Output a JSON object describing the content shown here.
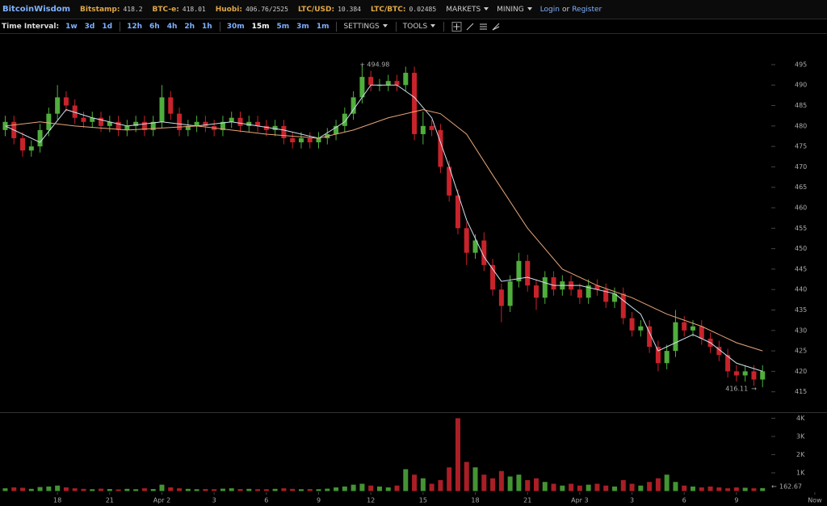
{
  "header": {
    "brand": "BitcoinWisdom",
    "tickers": [
      {
        "label": "Bitstamp:",
        "value": "418.2"
      },
      {
        "label": "BTC-e:",
        "value": "418.01"
      },
      {
        "label": "Huobi:",
        "value": "406.76/2525"
      },
      {
        "label": "LTC/USD:",
        "value": "10.384"
      },
      {
        "label": "LTC/BTC:",
        "value": "0.02485"
      }
    ],
    "markets": "MARKETS",
    "mining": "MINING",
    "login": "Login",
    "or": "or",
    "register": "Register"
  },
  "toolbar": {
    "label": "Time Interval:",
    "intervals": [
      "1w",
      "3d",
      "1d",
      "12h",
      "6h",
      "4h",
      "2h",
      "1h",
      "30m",
      "15m",
      "5m",
      "3m",
      "1m"
    ],
    "settings": "SETTINGS",
    "tools": "TOOLS"
  },
  "chart_data": {
    "type": "candlestick",
    "x": [
      15,
      15.5,
      16,
      16.5,
      17,
      17.5,
      18,
      18.5,
      19,
      19.5,
      20,
      20.5,
      21,
      21.5,
      22,
      22.5,
      23,
      23.5,
      24,
      24.5,
      25,
      25.5,
      26,
      26.5,
      27,
      27.5,
      28,
      28.5,
      29,
      29.5,
      30,
      30.5,
      31,
      31.5,
      32,
      32.5,
      33,
      33.5,
      34,
      34.5,
      35,
      35.5,
      36,
      36.5,
      37,
      37.5,
      38,
      38.5,
      39,
      39.5,
      40,
      40.5,
      41,
      41.5,
      42,
      42.5,
      43,
      43.5,
      44,
      44.5,
      45,
      45.5,
      46,
      46.5,
      47,
      47.5,
      48,
      48.5,
      49,
      49.5,
      50,
      50.5,
      51,
      51.5,
      52,
      52.5,
      53,
      53.5,
      54,
      54.5,
      55,
      55.5,
      56,
      56.5,
      57,
      57.5,
      58,
      58.5
    ],
    "open": [
      479,
      481,
      477,
      474,
      475,
      479,
      483,
      487,
      485,
      482,
      481,
      482,
      480,
      481,
      479,
      480,
      481,
      479,
      481,
      487,
      483,
      479,
      480,
      481,
      480,
      479,
      481,
      482,
      480,
      481,
      480,
      479,
      480,
      477,
      476,
      477,
      476,
      477,
      478,
      480,
      483,
      487,
      492,
      490,
      490,
      491,
      490,
      493,
      478,
      480,
      479,
      470,
      463,
      455,
      449,
      452,
      446,
      440,
      436,
      442,
      447,
      441,
      438,
      443,
      440,
      442,
      440,
      438,
      441,
      440,
      437,
      439,
      433,
      430,
      431,
      426,
      422,
      425,
      432,
      430,
      431,
      428,
      426,
      424,
      420,
      419,
      420,
      418
    ],
    "high": [
      482.5,
      482.5,
      478.5,
      476.5,
      480.5,
      484.5,
      490,
      488.5,
      486.5,
      483.5,
      483.5,
      483.5,
      482.5,
      482.5,
      481.5,
      482.5,
      482.5,
      482.5,
      490,
      488.5,
      484.5,
      481.5,
      482.5,
      482.5,
      481.5,
      482.5,
      483.5,
      483.5,
      482.5,
      482.5,
      481.5,
      481.5,
      481.5,
      478.5,
      478.5,
      478.5,
      478.5,
      479.5,
      481.5,
      484.5,
      488.5,
      494.98,
      493.5,
      491.5,
      492.5,
      492.5,
      494.5,
      494.5,
      483.5,
      481.5,
      480.5,
      471.5,
      464.5,
      456.5,
      453.5,
      454,
      447.5,
      441.5,
      443.5,
      449,
      448.5,
      442.5,
      444.5,
      444.5,
      443.5,
      443.5,
      441.5,
      442.5,
      442.5,
      441.5,
      440.5,
      440.5,
      434.5,
      432.5,
      432.5,
      427.5,
      426.5,
      435,
      433.5,
      432.5,
      432.5,
      429.5,
      427.5,
      425.5,
      421.5,
      421.5,
      421.5,
      421.5
    ],
    "low": [
      477.5,
      475.5,
      472.5,
      472.5,
      473.5,
      477.5,
      481.5,
      483.5,
      480.5,
      479.5,
      479.5,
      478.5,
      478.5,
      477.5,
      477.5,
      478.5,
      477.5,
      477.5,
      479.5,
      481.5,
      477.5,
      477.5,
      478.5,
      478.5,
      477.5,
      477.5,
      479.5,
      478.5,
      478.5,
      478.5,
      477.5,
      477.5,
      475.5,
      474.5,
      474.5,
      474.5,
      474.5,
      475.5,
      476.5,
      478.5,
      481.5,
      485.5,
      488.5,
      488.5,
      488.5,
      488.5,
      488.5,
      476.5,
      475.5,
      477.5,
      468.5,
      461.5,
      453.5,
      446,
      447.5,
      444.5,
      438.5,
      432,
      434.5,
      440.5,
      439.5,
      435,
      436.5,
      438.5,
      438.5,
      438.5,
      436.5,
      436.5,
      438.5,
      435.5,
      435.5,
      431.5,
      428.5,
      428.5,
      424.5,
      420,
      420.5,
      423.5,
      428.5,
      428.5,
      426.5,
      424.5,
      422.5,
      418.5,
      417.5,
      417.5,
      416.5,
      416.11
    ],
    "close": [
      481,
      477,
      474,
      475,
      479,
      483,
      487,
      485,
      482,
      481,
      482,
      480,
      481,
      479,
      480,
      481,
      479,
      481,
      487,
      483,
      479,
      480,
      481,
      480,
      479,
      481,
      482,
      480,
      481,
      480,
      479,
      480,
      477,
      476,
      477,
      476,
      477,
      478,
      480,
      483,
      487,
      492,
      490,
      490,
      491,
      490,
      493,
      478,
      480,
      479,
      470,
      463,
      455,
      449,
      452,
      446,
      440,
      436,
      442,
      447,
      441,
      438,
      443,
      440,
      442,
      440,
      438,
      441,
      440,
      437,
      439,
      433,
      430,
      431,
      426,
      422,
      425,
      432,
      430,
      431,
      428,
      426,
      424,
      420,
      419,
      420,
      418,
      420
    ],
    "volume": [
      150,
      200,
      180,
      120,
      220,
      250,
      300,
      200,
      150,
      120,
      100,
      130,
      110,
      90,
      120,
      100,
      150,
      110,
      350,
      200,
      150,
      120,
      100,
      110,
      100,
      130,
      150,
      110,
      120,
      100,
      100,
      120,
      150,
      120,
      100,
      110,
      100,
      130,
      200,
      250,
      350,
      400,
      300,
      250,
      200,
      300,
      1200,
      900,
      700,
      400,
      600,
      1300,
      4000,
      1600,
      1300,
      900,
      700,
      1100,
      800,
      900,
      600,
      700,
      500,
      400,
      300,
      400,
      300,
      350,
      400,
      300,
      250,
      600,
      400,
      300,
      500,
      700,
      900,
      500,
      300,
      250,
      200,
      250,
      200,
      150,
      200,
      180,
      150,
      162.67
    ],
    "up_color": "#4fae3c",
    "down_color": "#c8232b",
    "series": [
      {
        "color": "#cfe0ee",
        "x": [
          15,
          17,
          18.5,
          20,
          22,
          24,
          26,
          28,
          31,
          33,
          34.5,
          36,
          37.5,
          38.5,
          39.5,
          40.5,
          41.5,
          42.5,
          43.5,
          45,
          46.5,
          48,
          50,
          51.5,
          52.5,
          53.5,
          54.5,
          55.5,
          57,
          58.5
        ],
        "values": [
          480,
          476,
          484,
          482,
          480,
          481,
          480,
          481,
          479,
          477,
          481,
          490,
          490,
          487,
          482,
          470,
          457,
          448,
          442,
          443,
          441,
          441,
          439,
          434,
          425,
          427,
          429,
          427,
          422,
          420
        ]
      },
      {
        "color": "#e8a67a",
        "x": [
          15,
          17,
          19,
          22,
          26,
          30,
          33,
          35,
          37,
          39,
          40,
          41.5,
          43,
          45,
          47,
          49,
          51,
          53,
          55,
          57,
          58.5
        ],
        "values": [
          480,
          481,
          480,
          479,
          480,
          478,
          477,
          479,
          482,
          484,
          483,
          478,
          468,
          455,
          445,
          441,
          438,
          434,
          431,
          427,
          425
        ]
      }
    ],
    "xlim": [
      14.7,
      62.2
    ],
    "xticks": [
      18,
      21,
      {
        "value": 24,
        "label": "Apr 2"
      },
      {
        "value": 27,
        "label": "3"
      },
      {
        "value": 30,
        "label": "6"
      },
      {
        "value": 33,
        "label": "9"
      },
      {
        "value": 36,
        "label": "12"
      },
      {
        "value": 39,
        "label": "15"
      },
      {
        "value": 42,
        "label": "18"
      },
      {
        "value": 45,
        "label": "21"
      },
      {
        "value": 48,
        "label": "Apr 3"
      },
      {
        "value": 51,
        "label": "3"
      },
      {
        "value": 54,
        "label": "6"
      },
      {
        "value": 57,
        "label": "9"
      },
      {
        "value": 61.5,
        "label": "Now"
      }
    ],
    "ylim": [
      410,
      502.5
    ],
    "yticks": [
      415,
      420,
      425,
      430,
      435,
      440,
      445,
      450,
      455,
      460,
      465,
      470,
      475,
      480,
      485,
      490,
      495
    ],
    "volume_ylim": [
      0,
      4240
    ],
    "volume_yticks": [
      {
        "value": 1000,
        "label": "1K"
      },
      {
        "value": 2000,
        "label": "2K"
      },
      {
        "value": 3000,
        "label": "3K"
      },
      {
        "value": 4000,
        "label": "4K"
      }
    ]
  }
}
